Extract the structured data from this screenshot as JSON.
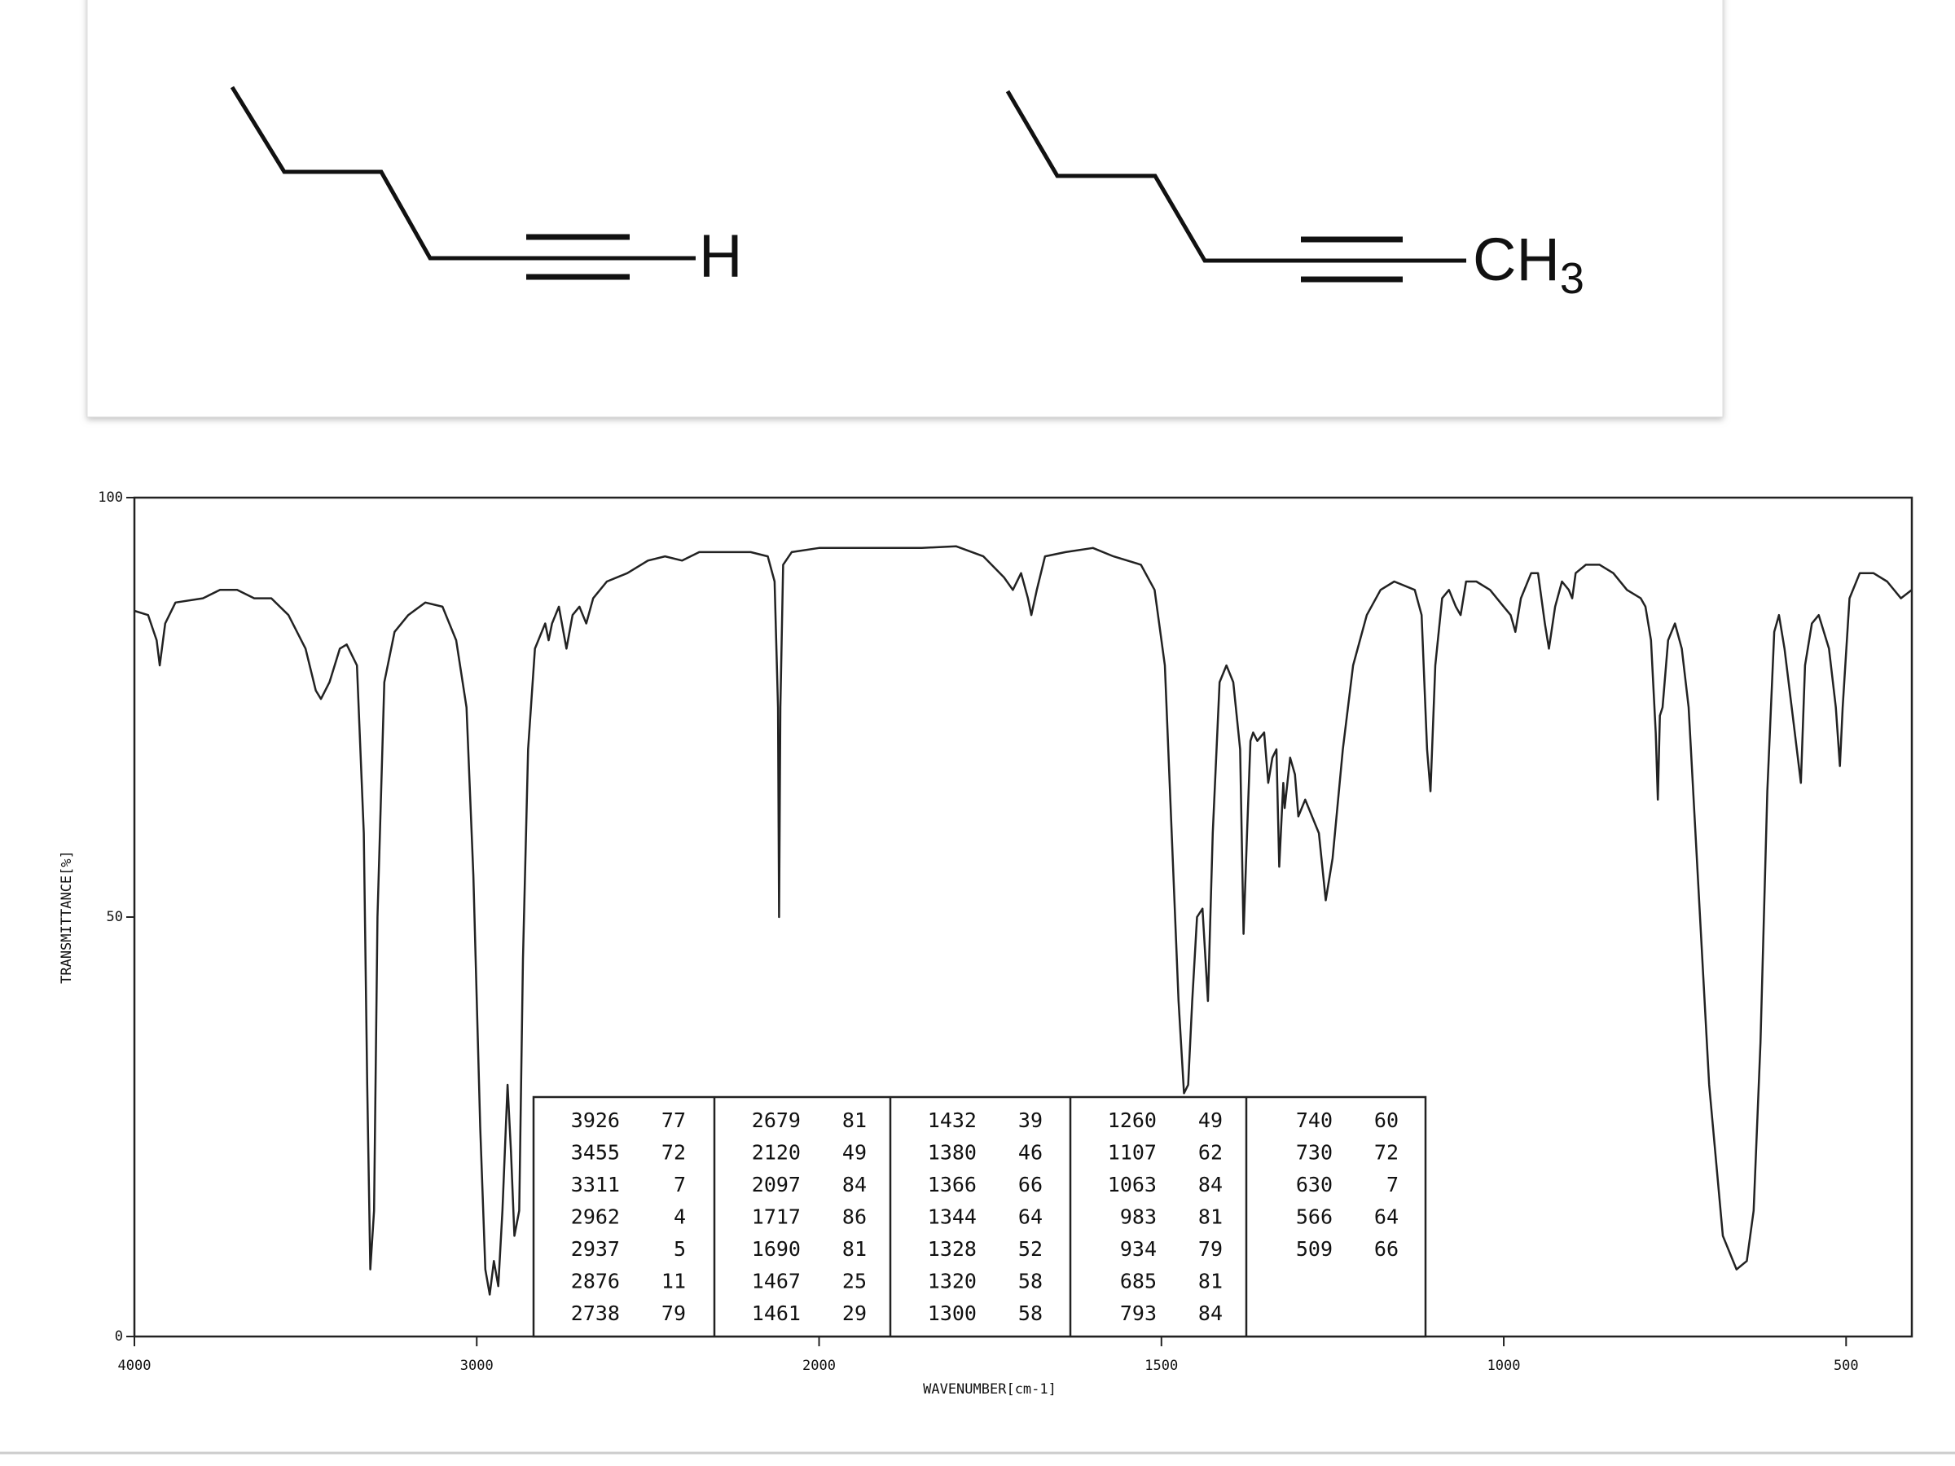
{
  "structures": [
    {
      "label": "H"
    },
    {
      "label": "CH",
      "label_sub": "3"
    }
  ],
  "chart_data": {
    "type": "line",
    "color": "#222222",
    "ylabel": "TRANSMITTANCE[%]",
    "xlabel": "WAVENUMBER[cm-1]",
    "xlim": [
      4000,
      404
    ],
    "xscale_break": 2000,
    "ylim": [
      0,
      100
    ],
    "xticks": [
      4000,
      3000,
      2000,
      1500,
      1000,
      500
    ],
    "yticks": [
      0,
      50,
      100
    ],
    "x": [
      4000,
      3960,
      3935,
      3926,
      3910,
      3880,
      3800,
      3750,
      3700,
      3650,
      3600,
      3550,
      3500,
      3470,
      3455,
      3430,
      3400,
      3380,
      3350,
      3330,
      3320,
      3311,
      3300,
      3290,
      3270,
      3240,
      3200,
      3150,
      3100,
      3060,
      3030,
      3010,
      2990,
      2975,
      2962,
      2950,
      2937,
      2925,
      2910,
      2900,
      2890,
      2876,
      2865,
      2850,
      2830,
      2800,
      2790,
      2780,
      2760,
      2738,
      2720,
      2700,
      2680,
      2660,
      2620,
      2560,
      2500,
      2450,
      2400,
      2350,
      2300,
      2200,
      2150,
      2130,
      2120,
      2117,
      2113,
      2105,
      2080,
      2000,
      1900,
      1850,
      1800,
      1760,
      1730,
      1717,
      1705,
      1695,
      1690,
      1682,
      1670,
      1640,
      1600,
      1570,
      1530,
      1510,
      1495,
      1485,
      1475,
      1467,
      1461,
      1455,
      1448,
      1440,
      1432,
      1425,
      1415,
      1405,
      1395,
      1385,
      1380,
      1375,
      1370,
      1366,
      1360,
      1350,
      1344,
      1338,
      1332,
      1328,
      1322,
      1320,
      1312,
      1305,
      1300,
      1290,
      1270,
      1260,
      1250,
      1235,
      1220,
      1200,
      1180,
      1160,
      1130,
      1120,
      1112,
      1107,
      1100,
      1090,
      1080,
      1070,
      1063,
      1055,
      1040,
      1020,
      1000,
      990,
      983,
      975,
      960,
      950,
      940,
      934,
      925,
      915,
      905,
      900,
      895,
      880,
      860,
      840,
      820,
      800,
      793,
      785,
      778,
      775,
      772,
      768,
      760,
      750,
      740,
      730,
      720,
      700,
      680,
      660,
      645,
      635,
      625,
      615,
      605,
      598,
      590,
      575,
      566,
      560,
      550,
      540,
      525,
      515,
      509,
      505,
      495,
      480,
      460,
      440,
      420,
      404
    ],
    "values": [
      86.5,
      86,
      83,
      80,
      85,
      87.5,
      88,
      89,
      89,
      88,
      88,
      86,
      82,
      77,
      76,
      78,
      82,
      82.5,
      80,
      60,
      30,
      8,
      15,
      50,
      78,
      84,
      86,
      87.5,
      87,
      83,
      75,
      55,
      25,
      8,
      5,
      9,
      6,
      15,
      30,
      22,
      12,
      15,
      45,
      70,
      82,
      85,
      83,
      85,
      87,
      82,
      86,
      87,
      85,
      88,
      90,
      91,
      92.5,
      93,
      92.5,
      93.5,
      93.5,
      93.5,
      93,
      90,
      75,
      50,
      75,
      92,
      93.5,
      94,
      94,
      94,
      94.2,
      93,
      90.5,
      89,
      91,
      88,
      86,
      89,
      93,
      93.5,
      94,
      93,
      92,
      89,
      80,
      60,
      40,
      29,
      30,
      40,
      50,
      51,
      40,
      60,
      78,
      80,
      78,
      70,
      48,
      60,
      71,
      72,
      71,
      72,
      66,
      69,
      70,
      56,
      66,
      63,
      69,
      67,
      62,
      64,
      60,
      52,
      57,
      70,
      80,
      86,
      89,
      90,
      89,
      86,
      70,
      65,
      80,
      88,
      89,
      87,
      86,
      90,
      90,
      89,
      87,
      86,
      84,
      88,
      91,
      91,
      85,
      82,
      87,
      90,
      89,
      88,
      91,
      92,
      92,
      91,
      89,
      88,
      87,
      83,
      72,
      64,
      74,
      75,
      83,
      85,
      82,
      75,
      60,
      30,
      12,
      8,
      9,
      15,
      35,
      65,
      84,
      86,
      82,
      72,
      66,
      80,
      85,
      86,
      82,
      75,
      68,
      75,
      88,
      91,
      91,
      90,
      88,
      89
    ],
    "peak_table": [
      [
        [
          3926,
          77
        ],
        [
          3455,
          72
        ],
        [
          3311,
          7
        ],
        [
          2962,
          4
        ],
        [
          2937,
          5
        ],
        [
          2876,
          11
        ],
        [
          2738,
          79
        ]
      ],
      [
        [
          2679,
          81
        ],
        [
          2120,
          49
        ],
        [
          2097,
          84
        ],
        [
          1717,
          86
        ],
        [
          1690,
          81
        ],
        [
          1467,
          25
        ],
        [
          1461,
          29
        ]
      ],
      [
        [
          1432,
          39
        ],
        [
          1380,
          46
        ],
        [
          1366,
          66
        ],
        [
          1344,
          64
        ],
        [
          1328,
          52
        ],
        [
          1320,
          58
        ],
        [
          1300,
          58
        ]
      ],
      [
        [
          1260,
          49
        ],
        [
          1107,
          62
        ],
        [
          1063,
          84
        ],
        [
          983,
          81
        ],
        [
          934,
          79
        ],
        [
          685,
          81
        ],
        [
          793,
          84
        ]
      ],
      [
        [
          740,
          60
        ],
        [
          730,
          72
        ],
        [
          630,
          7
        ],
        [
          566,
          64
        ],
        [
          509,
          66
        ]
      ]
    ]
  }
}
